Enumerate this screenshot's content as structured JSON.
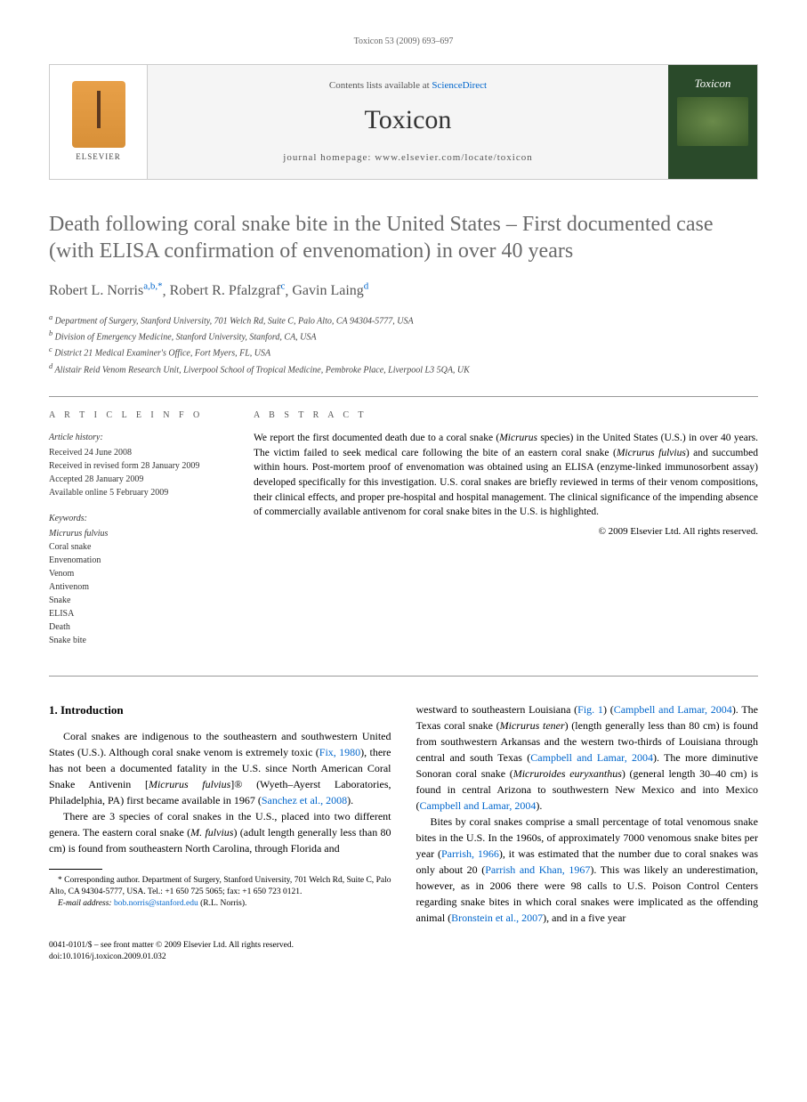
{
  "running_header": "Toxicon 53 (2009) 693–697",
  "journal_box": {
    "contents_prefix": "Contents lists available at ",
    "contents_link": "ScienceDirect",
    "journal_name": "Toxicon",
    "homepage_prefix": "journal homepage: ",
    "homepage_url": "www.elsevier.com/locate/toxicon",
    "publisher_label": "ELSEVIER",
    "cover_title": "Toxicon"
  },
  "title": "Death following coral snake bite in the United States – First documented case (with ELISA confirmation of envenomation) in over 40 years",
  "authors": [
    {
      "name": "Robert L. Norris",
      "sup": "a,b,",
      "star": "*"
    },
    {
      "name": "Robert R. Pfalzgraf",
      "sup": "c",
      "star": ""
    },
    {
      "name": "Gavin Laing",
      "sup": "d",
      "star": ""
    }
  ],
  "affiliations": {
    "a": "Department of Surgery, Stanford University, 701 Welch Rd, Suite C, Palo Alto, CA 94304-5777, USA",
    "b": "Division of Emergency Medicine, Stanford University, Stanford, CA, USA",
    "c": "District 21 Medical Examiner's Office, Fort Myers, FL, USA",
    "d": "Alistair Reid Venom Research Unit, Liverpool School of Tropical Medicine, Pembroke Place, Liverpool L3 5QA, UK"
  },
  "article_info": {
    "heading": "A R T I C L E   I N F O",
    "history_label": "Article history:",
    "received": "Received 24 June 2008",
    "revised": "Received in revised form 28 January 2009",
    "accepted": "Accepted 28 January 2009",
    "online": "Available online 5 February 2009",
    "keywords_label": "Keywords:",
    "keywords": [
      "Micrurus fulvius",
      "Coral snake",
      "Envenomation",
      "Venom",
      "Antivenom",
      "Snake",
      "ELISA",
      "Death",
      "Snake bite"
    ]
  },
  "abstract": {
    "heading": "A B S T R A C T",
    "text_1": "We report the first documented death due to a coral snake (",
    "text_2": "Micrurus",
    "text_3": " species) in the United States (U.S.) in over 40 years. The victim failed to seek medical care following the bite of an eastern coral snake (",
    "text_4": "Micrurus fulvius",
    "text_5": ") and succumbed within hours. Post-mortem proof of envenomation was obtained using an ELISA (enzyme-linked immunosorbent assay) developed specifically for this investigation. U.S. coral snakes are briefly reviewed in terms of their venom compositions, their clinical effects, and proper pre-hospital and hospital management. The clinical significance of the impending absence of commercially available antivenom for coral snake bites in the U.S. is highlighted.",
    "copyright": "© 2009 Elsevier Ltd. All rights reserved."
  },
  "body": {
    "section_heading": "1. Introduction",
    "left_p1_a": "Coral snakes are indigenous to the southeastern and southwestern United States (U.S.). Although coral snake venom is extremely toxic (",
    "left_p1_ref1": "Fix, 1980",
    "left_p1_b": "), there has not been a documented fatality in the U.S. since North American Coral Snake Antivenin [",
    "left_p1_ital": "Micrurus fulvius",
    "left_p1_c": "]® (Wyeth–Ayerst Laboratories, Philadelphia, PA) first became available in 1967 (",
    "left_p1_ref2": "Sanchez et al., 2008",
    "left_p1_d": ").",
    "left_p2_a": "There are 3 species of coral snakes in the U.S., placed into two different genera. The eastern coral snake (",
    "left_p2_ital": "M. fulvius",
    "left_p2_b": ") (adult length generally less than 80 cm) is found from southeastern North Carolina, through Florida and",
    "right_p1_a": "westward to southeastern Louisiana (",
    "right_p1_ref1": "Fig. 1",
    "right_p1_b": ") (",
    "right_p1_ref2": "Campbell and Lamar, 2004",
    "right_p1_c": "). The Texas coral snake (",
    "right_p1_ital1": "Micrurus tener",
    "right_p1_d": ") (length generally less than 80 cm) is found from southwestern Arkansas and the western two-thirds of Louisiana through central and south Texas (",
    "right_p1_ref3": "Campbell and Lamar, 2004",
    "right_p1_e": "). The more diminutive Sonoran coral snake (",
    "right_p1_ital2": "Micruroides euryxanthus",
    "right_p1_f": ") (general length 30–40 cm) is found in central Arizona to southwestern New Mexico and into Mexico (",
    "right_p1_ref4": "Campbell and Lamar, 2004",
    "right_p1_g": ").",
    "right_p2_a": "Bites by coral snakes comprise a small percentage of total venomous snake bites in the U.S. In the 1960s, of approximately 7000 venomous snake bites per year (",
    "right_p2_ref1": "Parrish, 1966",
    "right_p2_b": "), it was estimated that the number due to coral snakes was only about 20 (",
    "right_p2_ref2": "Parrish and Khan, 1967",
    "right_p2_c": "). This was likely an underestimation, however, as in 2006 there were 98 calls to U.S. Poison Control Centers regarding snake bites in which coral snakes were implicated as the offending animal (",
    "right_p2_ref3": "Bronstein et al., 2007",
    "right_p2_d": "), and in a five year"
  },
  "footnote": {
    "corr_text": "* Corresponding author. Department of Surgery, Stanford University, 701 Welch Rd, Suite C, Palo Alto, CA 94304-5777, USA. Tel.: +1 650 725 5065; fax: +1 650 723 0121.",
    "email_label": "E-mail address:",
    "email": "bob.norris@stanford.edu",
    "email_suffix": "(R.L. Norris)."
  },
  "footer": {
    "line1": "0041-0101/$ – see front matter © 2009 Elsevier Ltd. All rights reserved.",
    "line2": "doi:10.1016/j.toxicon.2009.01.032"
  },
  "colors": {
    "link": "#0066cc",
    "title_gray": "#6a6a6a",
    "text": "#000000"
  }
}
